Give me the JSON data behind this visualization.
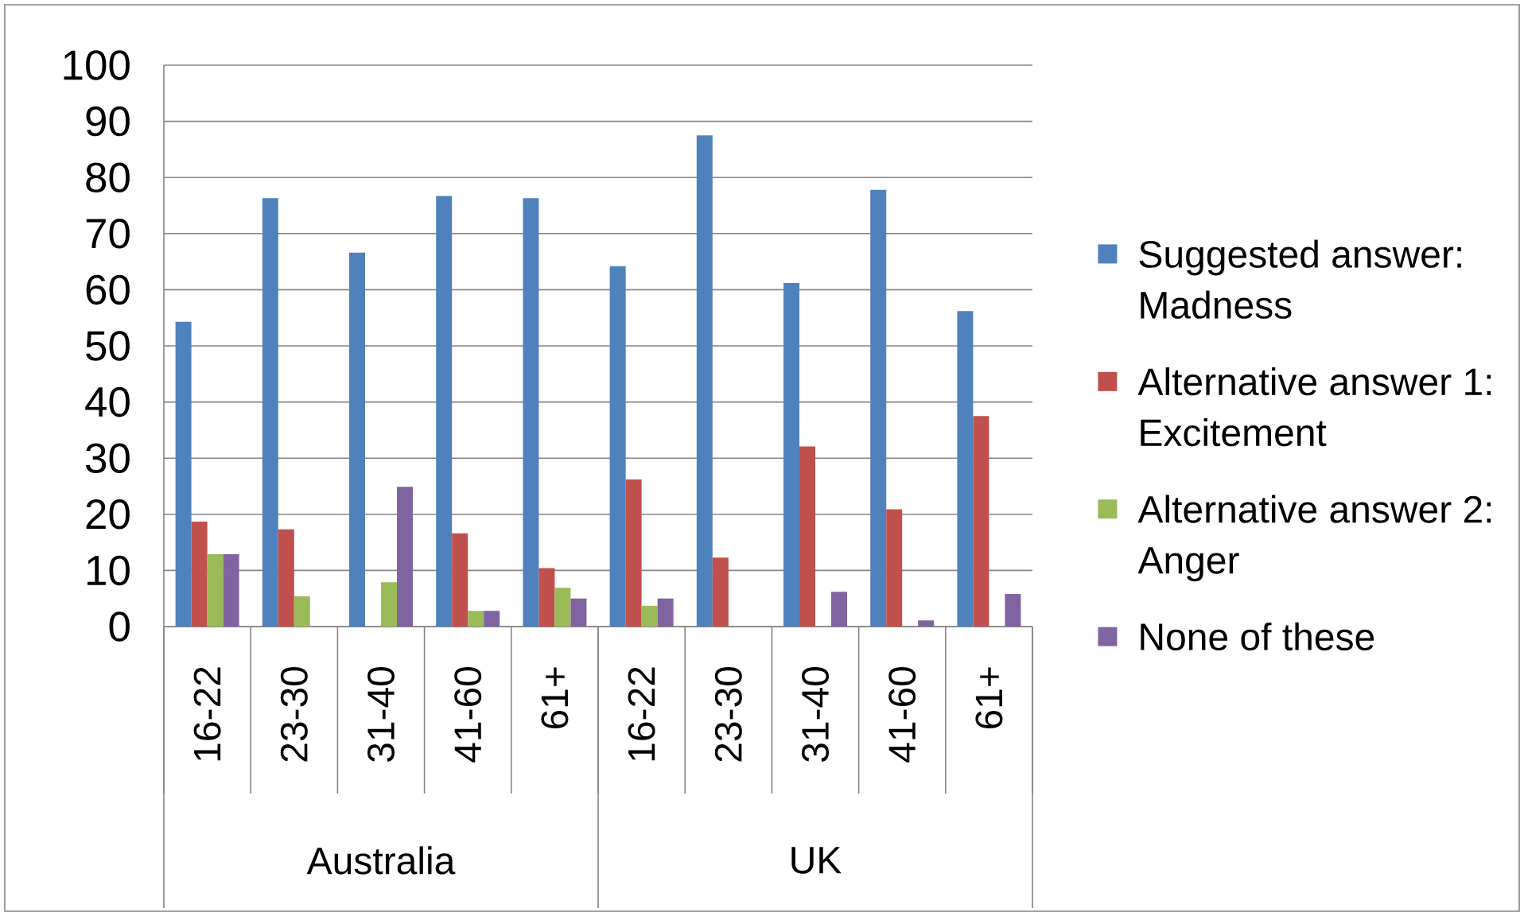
{
  "chart_data": {
    "type": "bar",
    "categories": [
      "16-22",
      "23-30",
      "31-40",
      "41-60",
      "61+",
      "16-22",
      "23-30",
      "31-40",
      "41-60",
      "61+"
    ],
    "annotations": [
      "Australia",
      "UK"
    ],
    "series": [
      {
        "name": "Suggested answer: Madness",
        "color": "#4f81bd",
        "values": [
          54.3,
          76.3,
          66.6,
          76.7,
          76.3,
          64.2,
          87.5,
          61.2,
          77.8,
          56.2
        ]
      },
      {
        "name": "Alternative answer 1: Excitement",
        "color": "#c0504d",
        "values": [
          18.7,
          17.3,
          null,
          16.6,
          10.4,
          26.2,
          12.3,
          32.1,
          20.9,
          37.5
        ]
      },
      {
        "name": "Alternative answer 2: Anger",
        "color": "#9bbb59",
        "values": [
          12.9,
          5.4,
          7.9,
          2.8,
          6.9,
          3.7,
          null,
          null,
          null,
          null
        ]
      },
      {
        "name": "None of these",
        "color": "#8064a2",
        "values": [
          12.9,
          null,
          24.9,
          2.8,
          5.0,
          5.0,
          null,
          6.2,
          1.1,
          5.8
        ]
      }
    ],
    "ylim": [
      0,
      100
    ],
    "yticks": [
      0,
      10,
      20,
      30,
      40,
      50,
      60,
      70,
      80,
      90,
      100
    ],
    "grid": "y",
    "legend": "right"
  }
}
